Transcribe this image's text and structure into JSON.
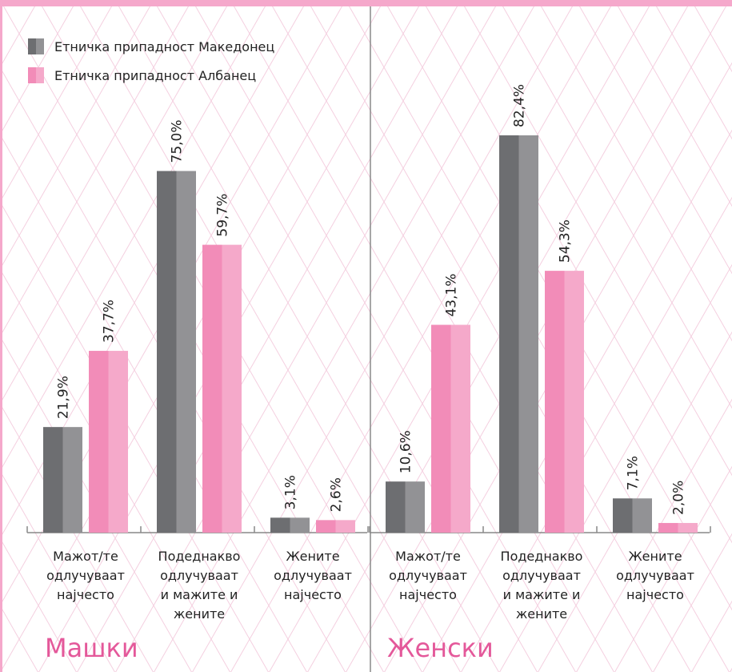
{
  "chart_data": [
    {
      "type": "bar",
      "title": "Машки",
      "categories": [
        [
          "Мажот/те",
          "одлучуваат",
          "најчесто"
        ],
        [
          "Подеднакво",
          "одлучуваат",
          "и мажите и",
          "жените"
        ],
        [
          "Жените",
          "одлучуваат",
          "најчесто"
        ]
      ],
      "series": [
        {
          "name": "Етничка припадност Македонец",
          "color": "#6d6e71",
          "values": [
            21.9,
            75.0,
            3.1
          ],
          "value_labels": [
            "21,9%",
            "75,0%",
            "3,1%"
          ]
        },
        {
          "name": "Етничка припадност Албанец",
          "color": "#f28cb8",
          "values": [
            37.7,
            59.7,
            2.6
          ],
          "value_labels": [
            "37,7%",
            "59,7%",
            "2,6%"
          ]
        }
      ]
    },
    {
      "type": "bar",
      "title": "Женски",
      "categories": [
        [
          "Мажот/те",
          "одлучуваат",
          "најчесто"
        ],
        [
          "Подеднакво",
          "одлучуваат",
          "и мажите и",
          "жените"
        ],
        [
          "Жените",
          "одлучуваат",
          "најчесто"
        ]
      ],
      "series": [
        {
          "name": "Етничка припадност Македонец",
          "color": "#6d6e71",
          "values": [
            10.6,
            82.4,
            7.1
          ],
          "value_labels": [
            "10,6%",
            "82,4%",
            "7,1%"
          ]
        },
        {
          "name": "Етничка припадност Албанец",
          "color": "#f28cb8",
          "values": [
            43.1,
            54.3,
            2.0
          ],
          "value_labels": [
            "43,1%",
            "54,3%",
            "2,0%"
          ]
        }
      ]
    }
  ]
}
